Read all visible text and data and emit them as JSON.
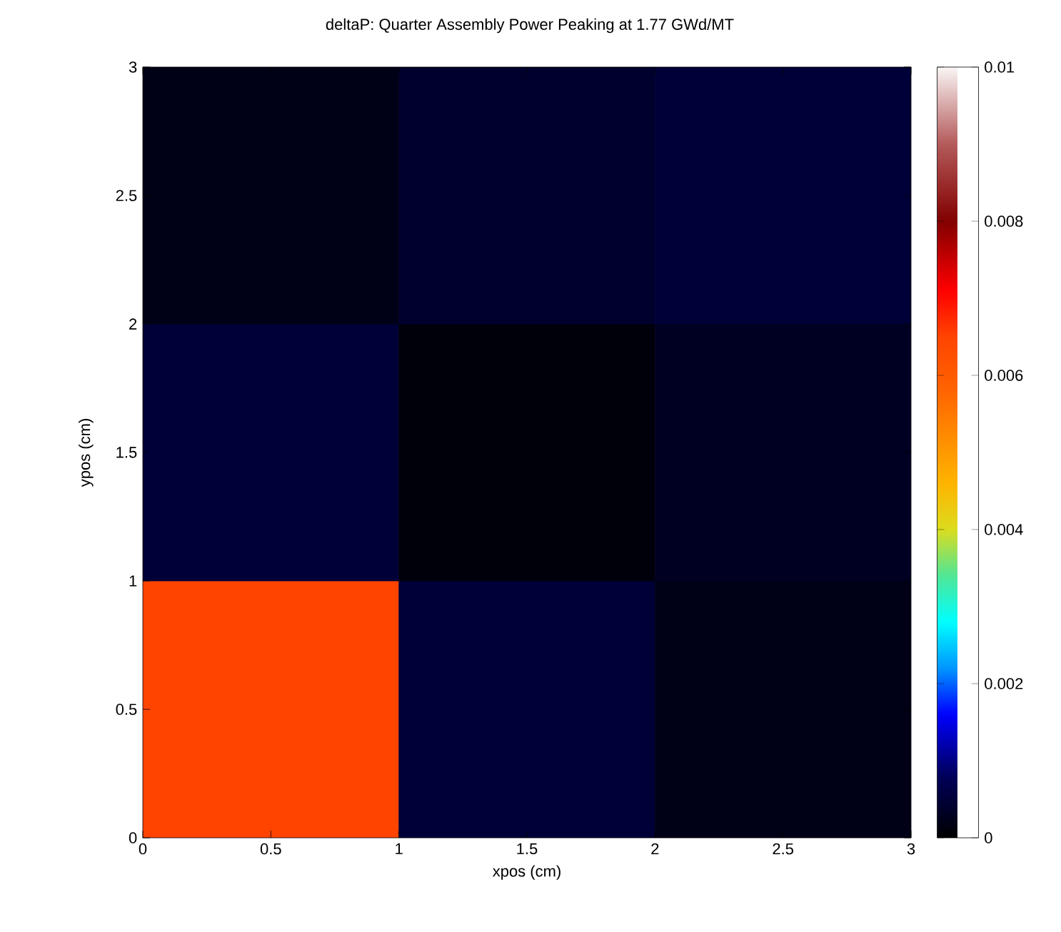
{
  "chart_data": {
    "type": "heatmap",
    "title": "deltaP: Quarter Assembly Power Peaking at 1.77 GWd/MT",
    "xlabel": "xpos (cm)",
    "ylabel": "ypos (cm)",
    "xlim": [
      0,
      3
    ],
    "ylim": [
      0,
      3
    ],
    "xticks": [
      0,
      0.5,
      1,
      1.5,
      2,
      2.5,
      3
    ],
    "yticks": [
      0,
      0.5,
      1,
      1.5,
      2,
      2.5,
      3
    ],
    "cells": [
      [
        0.0002,
        0.0004,
        0.0005
      ],
      [
        0.0005,
        0.0001,
        0.0003
      ],
      [
        0.0065,
        0.0005,
        0.0002
      ]
    ],
    "clim": [
      0,
      0.01
    ],
    "cticks": [
      0,
      0.002,
      0.004,
      0.006,
      0.008,
      0.01
    ]
  }
}
